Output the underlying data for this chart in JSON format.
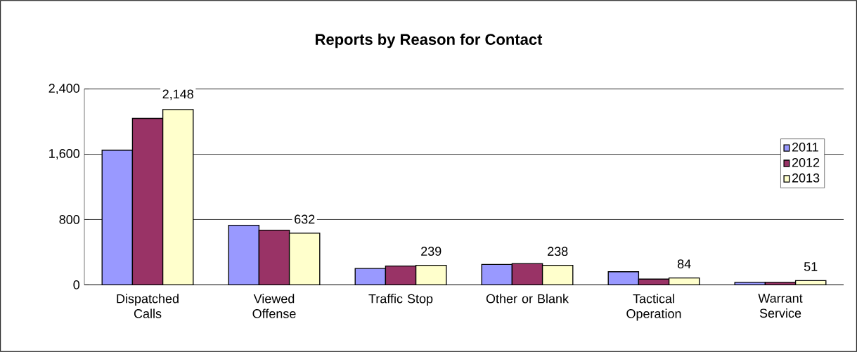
{
  "chart_data": {
    "type": "bar",
    "title": "Reports by Reason for Contact",
    "categories": [
      "Dispatched Calls",
      "Viewed Offense",
      "Traffic Stop",
      "Other or Blank",
      "Tactical Operation",
      "Warrant Service"
    ],
    "series": [
      {
        "name": "2011",
        "color": "#9999ff",
        "values": [
          1650,
          730,
          200,
          250,
          160,
          30
        ]
      },
      {
        "name": "2012",
        "color": "#993366",
        "values": [
          2040,
          670,
          230,
          260,
          70,
          30
        ]
      },
      {
        "name": "2013",
        "color": "#ffffcc",
        "values": [
          2148,
          632,
          239,
          238,
          84,
          51
        ],
        "value_labels": [
          "2,148",
          "632",
          "239",
          "238",
          "84",
          "51"
        ]
      }
    ],
    "ylim": [
      0,
      2400
    ],
    "yticks": [
      {
        "value": 0,
        "label": "0"
      },
      {
        "value": 800,
        "label": "800"
      },
      {
        "value": 1600,
        "label": "1,600"
      },
      {
        "value": 2400,
        "label": "2,400"
      }
    ],
    "grid": "y",
    "legend": "right"
  }
}
